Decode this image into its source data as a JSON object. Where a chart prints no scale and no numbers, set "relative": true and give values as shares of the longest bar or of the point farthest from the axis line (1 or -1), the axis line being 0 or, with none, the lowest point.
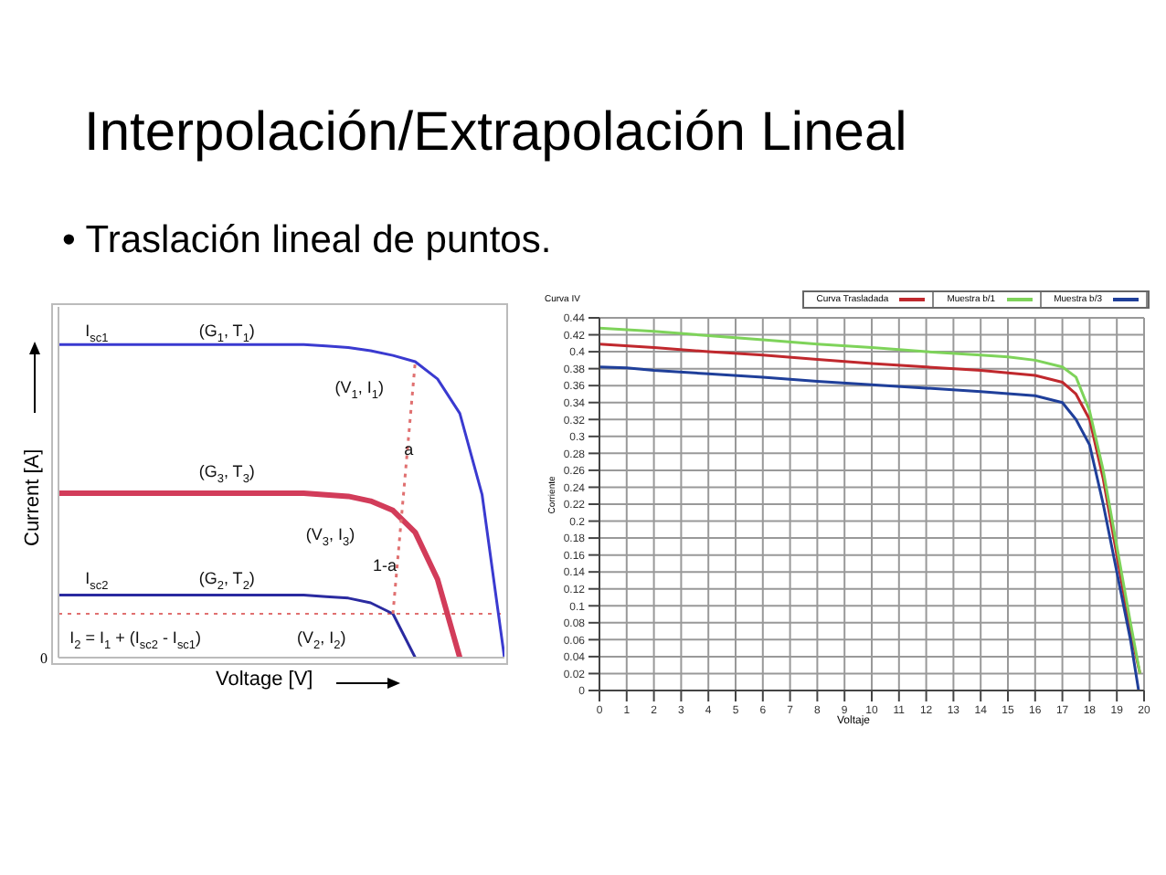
{
  "chart_data": [
    {
      "type": "line",
      "title": "Interpolación/Extrapolación Lineal",
      "subtitle": "• Traslación lineal de puntos.",
      "xlabel": "Voltage [V]",
      "ylabel": "Current [A]",
      "relative": true,
      "tick_labels": false,
      "marker": "none",
      "categories": [
        null,
        null,
        null,
        null,
        null,
        null,
        null,
        null,
        null,
        null,
        null,
        null,
        null,
        null,
        null,
        null,
        null,
        null,
        null,
        null,
        null
      ],
      "series": [
        {
          "color": "#3a3ad0",
          "values": [
            1,
            1,
            1,
            1,
            1,
            1,
            1,
            1,
            1,
            1,
            1,
            1,
            0.995,
            0.99,
            0.98,
            0.965,
            0.945,
            0.89,
            0.78,
            0.52,
            0
          ]
        },
        {
          "color": "#d23c5a",
          "values": [
            0.525,
            0.525,
            0.525,
            0.525,
            0.525,
            0.525,
            0.525,
            0.525,
            0.525,
            0.525,
            0.525,
            0.525,
            0.52,
            0.515,
            0.5,
            0.47,
            0.4,
            0.25,
            0,
            null,
            null
          ]
        },
        {
          "color": "#2a2aa0",
          "values": [
            0.2,
            0.2,
            0.2,
            0.2,
            0.2,
            0.2,
            0.2,
            0.2,
            0.2,
            0.2,
            0.2,
            0.2,
            0.195,
            0.19,
            0.175,
            0.14,
            0,
            null,
            null,
            null,
            null
          ]
        },
        {
          "color": "#e07070",
          "line_style": "dotted",
          "values": [
            null,
            null,
            null,
            null,
            null,
            null,
            null,
            null,
            null,
            null,
            null,
            null,
            null,
            null,
            null,
            0.14,
            0.945,
            null,
            null,
            null,
            null
          ]
        }
      ],
      "ref_lines": [
        {
          "axis": "y",
          "value": 0.14,
          "color": "#e07070",
          "line_style": "dotted"
        }
      ],
      "annotations": [
        "I$_{sc1}$",
        "(G$_{1}$, T$_{1}$)",
        "(V$_{1}$, I$_{1}$)",
        "a",
        "(G$_{3}$, T$_{3}$)",
        "(V$_{3}$, I$_{3}$)",
        "1-a",
        "I$_{sc2}$",
        "(G$_{2}$, T$_{2}$)",
        "(V$_{2}$, I$_{2}$)",
        "I$_{2}$ = I$_{1}$ + (I$_{sc2}$ - I$_{sc1}$)",
        "0"
      ]
    },
    {
      "type": "line",
      "title": "Curva IV",
      "xlabel": "Voltaje",
      "ylabel": "Corriente",
      "grid": true,
      "legend": "top right",
      "marker": "none",
      "xlim": [
        0,
        20
      ],
      "xticks": [
        0,
        1,
        2,
        3,
        4,
        5,
        6,
        7,
        8,
        9,
        10,
        11,
        12,
        13,
        14,
        15,
        16,
        17,
        18,
        19,
        20
      ],
      "ylim": [
        0,
        0.44
      ],
      "yticks": [
        0,
        0.02,
        0.04,
        0.06,
        0.08,
        0.1,
        0.12,
        0.14,
        0.16,
        0.18,
        0.2,
        0.22,
        0.24,
        0.26,
        0.28,
        0.3,
        0.32,
        0.34,
        0.36,
        0.38,
        0.4,
        0.42,
        0.44
      ],
      "series": [
        {
          "name": "Curva Trasladada",
          "color": "#c0282d",
          "x": [
            0,
            2,
            4,
            6,
            8,
            10,
            12,
            14,
            16,
            17,
            17.5,
            18,
            18.5,
            19,
            19.5,
            19.85
          ],
          "values": [
            0.409,
            0.405,
            0.4,
            0.396,
            0.391,
            0.386,
            0.382,
            0.378,
            0.372,
            0.364,
            0.35,
            0.32,
            0.25,
            0.16,
            0.07,
            0.02
          ]
        },
        {
          "name": "Muestra b/1",
          "color": "#7ed35a",
          "x": [
            0,
            2,
            4,
            6,
            8,
            10,
            12,
            14,
            15,
            16,
            17,
            17.5,
            18,
            18.5,
            19,
            19.5,
            19.85
          ],
          "values": [
            0.428,
            0.424,
            0.419,
            0.414,
            0.409,
            0.405,
            0.4,
            0.396,
            0.394,
            0.39,
            0.382,
            0.37,
            0.33,
            0.26,
            0.17,
            0.08,
            0.02
          ]
        },
        {
          "name": "Muestra b/3",
          "color": "#1f3f9a",
          "x": [
            0,
            1,
            2,
            4,
            6,
            8,
            10,
            12,
            14,
            16,
            17,
            17.5,
            18,
            18.5,
            19,
            19.5,
            19.8
          ],
          "values": [
            0.382,
            0.381,
            0.378,
            0.374,
            0.37,
            0.365,
            0.361,
            0.357,
            0.353,
            0.348,
            0.34,
            0.32,
            0.29,
            0.22,
            0.14,
            0.06,
            0
          ]
        }
      ]
    }
  ]
}
